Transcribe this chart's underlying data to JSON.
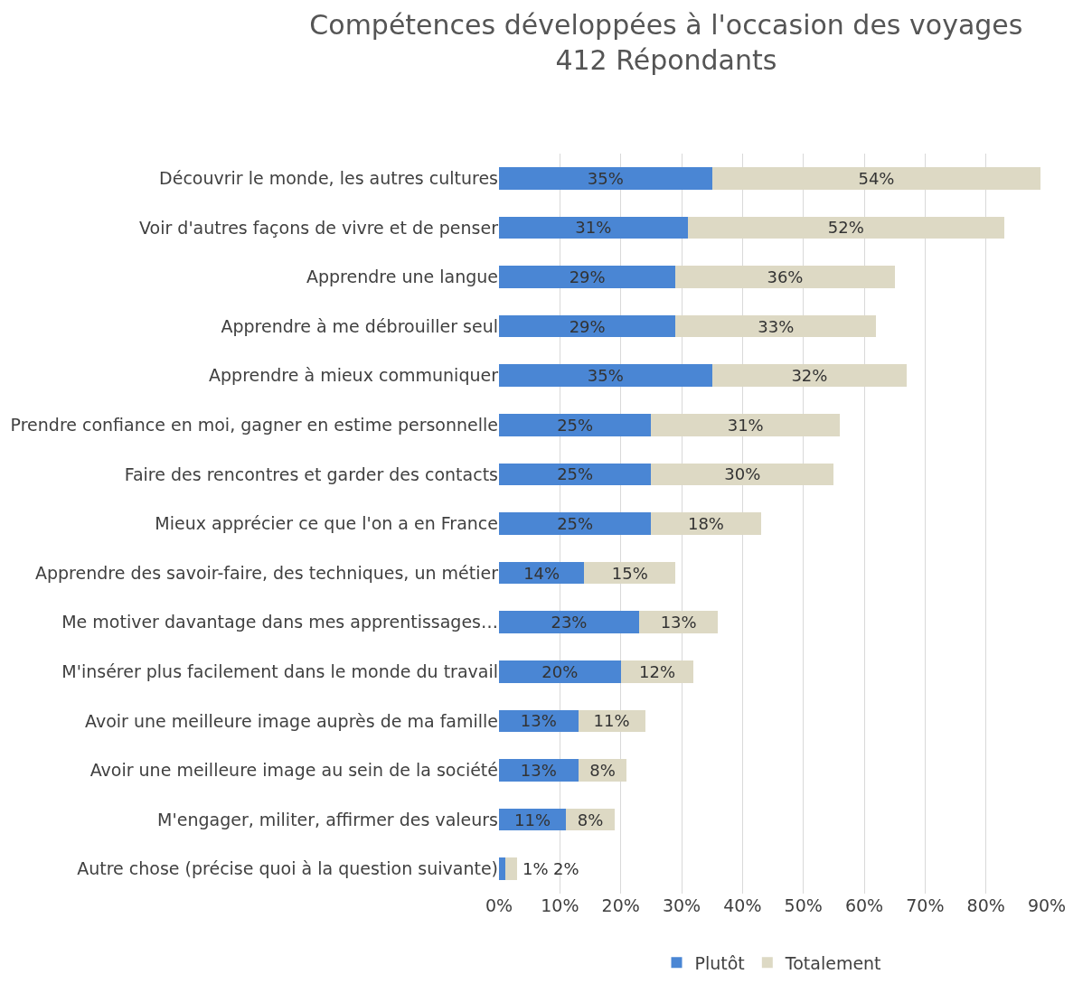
{
  "chart_data": {
    "type": "bar",
    "orientation": "horizontal",
    "stacked": true,
    "title": "Compétences développées à l'occasion des voyages",
    "subtitle": "412 Répondants",
    "categories": [
      "Découvrir le monde, les autres cultures",
      "Voir d'autres façons de vivre et de penser",
      "Apprendre une langue",
      "Apprendre à me débrouiller seul",
      "Apprendre à mieux communiquer",
      "Prendre confiance en moi, gagner en estime personnelle",
      "Faire des rencontres et garder des contacts",
      "Mieux apprécier ce que l'on a en France",
      "Apprendre des savoir-faire, des techniques, un métier",
      "Me motiver davantage dans mes apprentissages…",
      "M'insérer plus facilement dans le monde du travail",
      "Avoir une meilleure image auprès de ma famille",
      "Avoir une meilleure image au sein de la société",
      "M'engager, militer, affirmer des valeurs",
      "Autre chose (précise quoi à la question suivante)"
    ],
    "series": [
      {
        "name": "Plutôt",
        "color": "#4a86d4",
        "values": [
          35,
          31,
          29,
          29,
          35,
          25,
          25,
          25,
          14,
          23,
          20,
          13,
          13,
          11,
          1
        ],
        "value_labels": [
          "35%",
          "31%",
          "29%",
          "29%",
          "35%",
          "25%",
          "25%",
          "25%",
          "14%",
          "23%",
          "20%",
          "13%",
          "13%",
          "11%",
          "1%"
        ]
      },
      {
        "name": "Totalement",
        "color": "#ddd9c4",
        "values": [
          54,
          52,
          36,
          33,
          32,
          31,
          30,
          18,
          15,
          13,
          12,
          11,
          8,
          8,
          2
        ],
        "value_labels": [
          "54%",
          "52%",
          "36%",
          "33%",
          "32%",
          "31%",
          "30%",
          "18%",
          "15%",
          "13%",
          "12%",
          "11%",
          "8%",
          "8%",
          "2%"
        ]
      }
    ],
    "xlim": [
      0,
      90
    ],
    "xticks": [
      {
        "value": 0,
        "label": "0%"
      },
      {
        "value": 10,
        "label": "10%"
      },
      {
        "value": 20,
        "label": "20%"
      },
      {
        "value": 30,
        "label": "30%"
      },
      {
        "value": 40,
        "label": "40%"
      },
      {
        "value": 50,
        "label": "50%"
      },
      {
        "value": 60,
        "label": "60%"
      },
      {
        "value": 70,
        "label": "70%"
      },
      {
        "value": 80,
        "label": "80%"
      },
      {
        "value": 90,
        "label": "90%"
      }
    ],
    "grid": "x",
    "legend": "bottom"
  }
}
